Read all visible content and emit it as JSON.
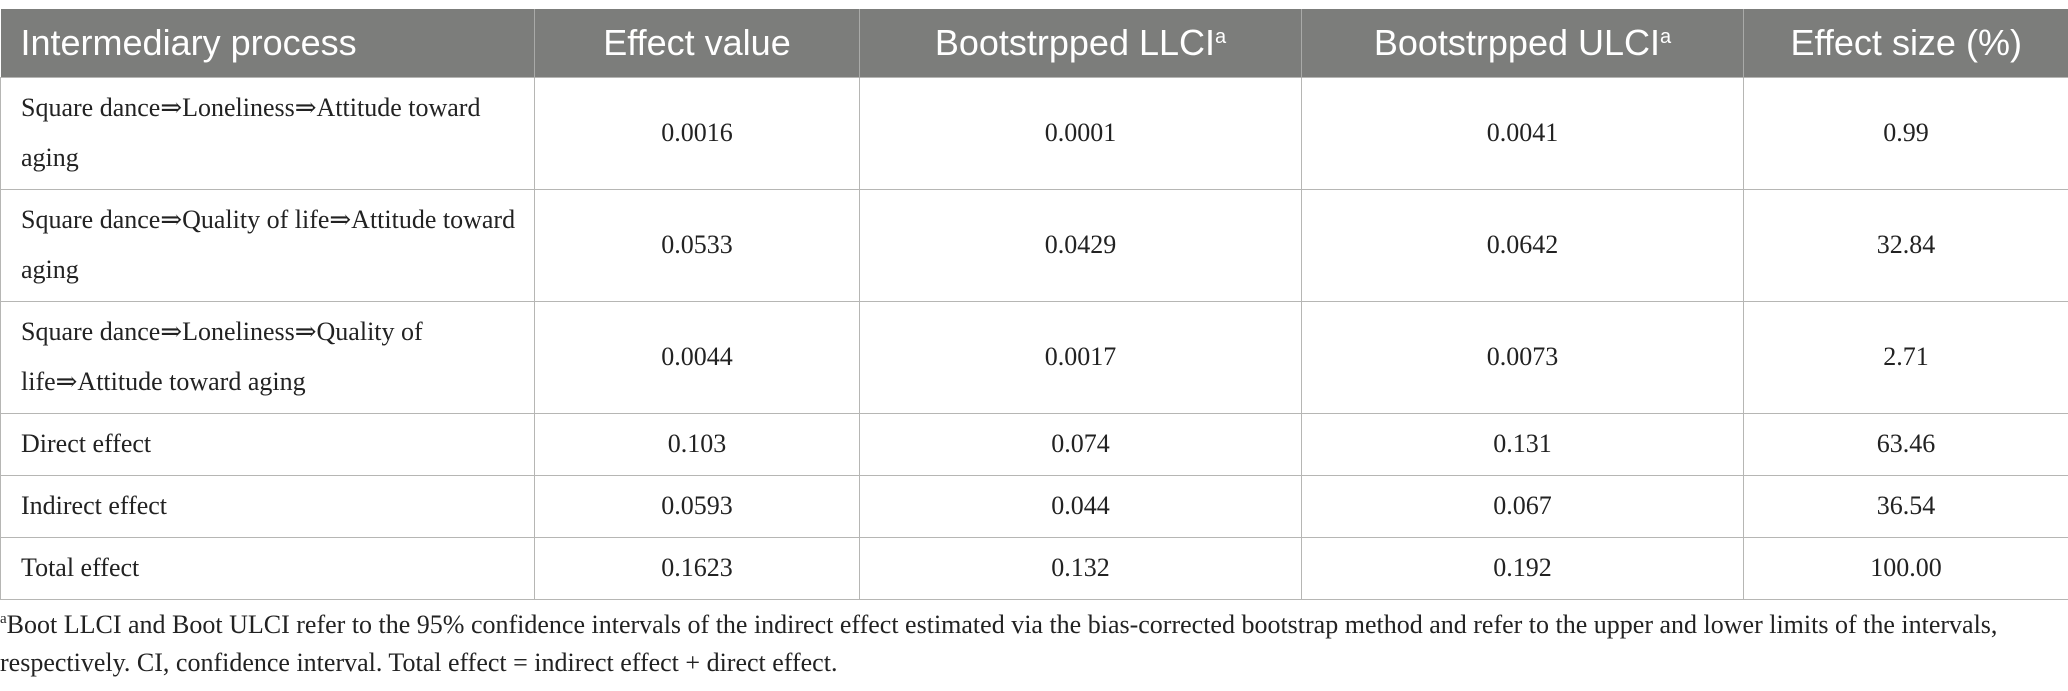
{
  "table": {
    "headers": [
      "Intermediary process",
      "Effect value",
      "Bootstrpped LLCI",
      "Bootstrpped ULCI",
      "Effect size (%)"
    ],
    "header_superscript": "a",
    "rows": [
      [
        "Square dance⇒Loneliness⇒Attitude toward aging",
        "0.0016",
        "0.0001",
        "0.0041",
        "0.99"
      ],
      [
        "Square dance⇒Quality of life⇒Attitude toward aging",
        "0.0533",
        "0.0429",
        "0.0642",
        "32.84"
      ],
      [
        "Square dance⇒Loneliness⇒Quality of life⇒Attitude toward aging",
        "0.0044",
        "0.0017",
        "0.0073",
        "2.71"
      ],
      [
        "Direct effect",
        "0.103",
        "0.074",
        "0.131",
        "63.46"
      ],
      [
        "Indirect effect",
        "0.0593",
        "0.044",
        "0.067",
        "36.54"
      ],
      [
        "Total effect",
        "0.1623",
        "0.132",
        "0.192",
        "100.00"
      ]
    ]
  },
  "footnote": {
    "marker": "a",
    "text": "Boot LLCI and Boot ULCI refer to the 95% confidence intervals of the indirect effect estimated via the bias-corrected bootstrap method and refer to the upper and lower limits of the intervals, respectively. CI, confidence interval. Total effect = indirect effect + direct effect."
  },
  "colors": {
    "header_bg": "#7c7d7b",
    "header_text": "#ffffff",
    "grid": "#b6b6b4"
  }
}
